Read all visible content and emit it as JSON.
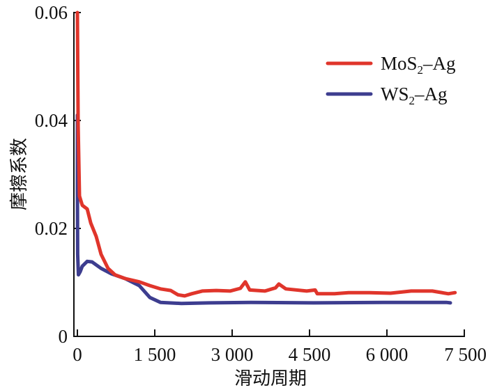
{
  "chart_data": {
    "type": "line",
    "title": "",
    "xlabel": "滑动周期",
    "ylabel": "摩擦系数",
    "xlim": [
      0,
      7500
    ],
    "ylim": [
      0,
      0.06
    ],
    "x_ticks": [
      0,
      1500,
      3000,
      4500,
      6000,
      7500
    ],
    "x_tick_labels": [
      "0",
      "1 500",
      "3 000",
      "4 500",
      "6 000",
      "7 500"
    ],
    "y_ticks": [
      0,
      0.02,
      0.04,
      0.06
    ],
    "y_tick_labels": [
      "0",
      "0.02",
      "0.04",
      "0.06"
    ],
    "grid": false,
    "legend_position": "top-right",
    "series": [
      {
        "name": "MoS2-Ag",
        "legend_main": "MoS",
        "legend_sub": "2",
        "legend_tail": "–Ag",
        "color": "#e0352b",
        "x": [
          0,
          15,
          40,
          95,
          190,
          260,
          365,
          460,
          595,
          730,
          930,
          1200,
          1405,
          1610,
          1810,
          1950,
          2080,
          2215,
          2420,
          2690,
          2960,
          3160,
          3255,
          3340,
          3635,
          3840,
          3905,
          4040,
          4445,
          4610,
          4650,
          4985,
          5255,
          5660,
          6070,
          6470,
          6880,
          7190,
          7320
        ],
        "y": [
          0.06,
          0.039,
          0.026,
          0.0243,
          0.0236,
          0.021,
          0.0185,
          0.0152,
          0.0126,
          0.0114,
          0.0107,
          0.0101,
          0.0094,
          0.0088,
          0.0085,
          0.0077,
          0.0075,
          0.0079,
          0.0084,
          0.0085,
          0.0084,
          0.0089,
          0.0101,
          0.0086,
          0.0084,
          0.009,
          0.0097,
          0.0088,
          0.0084,
          0.0086,
          0.0079,
          0.0079,
          0.0081,
          0.0081,
          0.008,
          0.0084,
          0.0084,
          0.0079,
          0.0081
        ]
      },
      {
        "name": "WS2-Ag",
        "legend_main": "WS",
        "legend_sub": "2",
        "legend_tail": "–Ag",
        "color": "#3d3d8f",
        "x": [
          0,
          0,
          5,
          20,
          55,
          95,
          190,
          285,
          460,
          660,
          930,
          1200,
          1405,
          1610,
          2015,
          2555,
          3365,
          4580,
          5930,
          7150,
          7230
        ],
        "y": [
          0.041,
          0.0275,
          0.0152,
          0.0114,
          0.012,
          0.013,
          0.0139,
          0.0138,
          0.0126,
          0.0116,
          0.0107,
          0.0094,
          0.0072,
          0.0063,
          0.0061,
          0.0062,
          0.0063,
          0.0062,
          0.0063,
          0.0063,
          0.0062
        ]
      }
    ]
  }
}
